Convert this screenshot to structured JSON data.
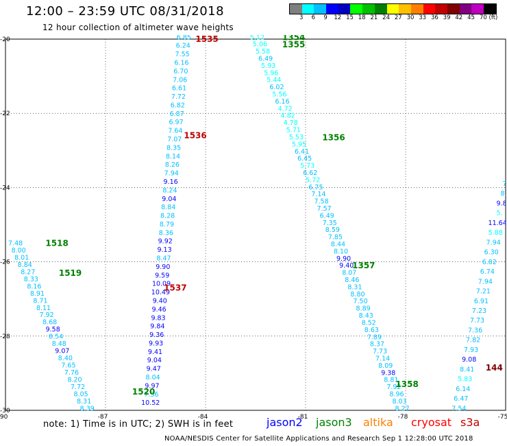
{
  "header": {
    "title": "12:00 – 23:59 UTC 08/31/2018",
    "subtitle": "12 hour collection of altimeter wave heights"
  },
  "scale": {
    "colors": [
      "#7f7f7f",
      "#00ffff",
      "#00c0ff",
      "#0000ff",
      "#0000c0",
      "#00ff00",
      "#00c000",
      "#008000",
      "#ffff00",
      "#ffc000",
      "#ff8000",
      "#ff0000",
      "#c00000",
      "#800000",
      "#800080",
      "#c000c0",
      "#000000"
    ],
    "labels": [
      "3",
      "6",
      "9",
      "12",
      "15",
      "18",
      "21",
      "24",
      "27",
      "30",
      "33",
      "36",
      "39",
      "42",
      "45",
      "70 (ft)"
    ]
  },
  "axes": {
    "x_ticks": [
      "-90",
      "-87",
      "-84",
      "-81",
      "-78",
      "-75"
    ],
    "y_ticks": [
      "-20",
      "-22",
      "-24",
      "-26",
      "-28",
      "-30"
    ],
    "x_range": [
      -90,
      -75
    ],
    "y_range": [
      -30,
      -20
    ]
  },
  "legend": {
    "items": [
      {
        "label": "jason2",
        "color": "#0000ff"
      },
      {
        "label": "jason3",
        "color": "#008000"
      },
      {
        "label": "altika",
        "color": "#ff8000"
      },
      {
        "label": "cryosat",
        "color": "#ff0000"
      },
      {
        "label": "s3a",
        "color": "#c00000"
      }
    ]
  },
  "passes": [
    {
      "label": "1518",
      "color": "#008000",
      "lon": -88.8,
      "lat": -25.5
    },
    {
      "label": "1519",
      "color": "#008000",
      "lon": -88.4,
      "lat": -26.3
    },
    {
      "label": "1520",
      "color": "#008000",
      "lon": -86.2,
      "lat": -29.5
    },
    {
      "label": "1535",
      "color": "#c00000",
      "lon": -84.3,
      "lat": -20.0
    },
    {
      "label": "1536",
      "color": "#c00000",
      "lon": -84.65,
      "lat": -22.6
    },
    {
      "label": "1537",
      "color": "#c00000",
      "lon": -85.25,
      "lat": -26.7
    },
    {
      "label": "1354",
      "color": "#008000",
      "lon": -81.7,
      "lat": -19.95
    },
    {
      "label": "1355",
      "color": "#008000",
      "lon": -81.7,
      "lat": -20.15
    },
    {
      "label": "1356",
      "color": "#008000",
      "lon": -80.5,
      "lat": -22.65
    },
    {
      "label": "1357",
      "color": "#008000",
      "lon": -79.6,
      "lat": -26.1
    },
    {
      "label": "1358",
      "color": "#008000",
      "lon": -78.3,
      "lat": -29.3
    },
    {
      "label": "144",
      "color": "#800000",
      "lon": -75.6,
      "lat": -28.85
    }
  ],
  "tracks": [
    {
      "name": "track-1518-1520",
      "start": [
        -89.7,
        -25.5
      ],
      "end": [
        -87.55,
        -29.95
      ],
      "values": [
        "7.48",
        "8.00",
        "8.01",
        "8.84",
        "8.27",
        "8.33",
        "8.16",
        "8.91",
        "8.71",
        "8.11",
        "7.92",
        "8.68",
        "9.58",
        "8.54",
        "8.48",
        "9.07",
        "8.40",
        "7.65",
        "7.76",
        "8.20",
        "7.72",
        "8.05",
        "8.31",
        "8.39"
      ]
    },
    {
      "name": "track-1535-1537",
      "start": [
        -84.65,
        -19.95
      ],
      "end": [
        -85.65,
        -29.8
      ],
      "values": [
        "6.85",
        "6.24",
        "7.55",
        "6.16",
        "6.70",
        "7.06",
        "6.61",
        "7.72",
        "6.82",
        "6.87",
        "6.97",
        "7.64",
        "7.07",
        "8.35",
        "8.14",
        "8.26",
        "7.94",
        "9.16",
        "8.24",
        "9.04",
        "8.84",
        "8.28",
        "8.79",
        "8.36",
        "9.92",
        "9.13",
        "8.47",
        "9.90",
        "9.59",
        "10.09",
        "10.49",
        "9.40",
        "9.46",
        "9.83",
        "9.84",
        "9.36",
        "9.93",
        "9.41",
        "9.04",
        "9.47",
        "8.04",
        "9.97",
        "7.36",
        "10.52"
      ]
    },
    {
      "name": "track-1354-1358",
      "start": [
        -82.45,
        -19.95
      ],
      "end": [
        -78.1,
        -29.95
      ],
      "values": [
        "5.12",
        "5.06",
        "5.58",
        "6.49",
        "5.93",
        "5.96",
        "5.44",
        "6.02",
        "5.56",
        "6.16",
        "4.72",
        "4.82",
        "4.78",
        "5.71",
        "5.53",
        "5.95",
        "6.41",
        "6.45",
        "5.73",
        "6.62",
        "5.72",
        "6.75",
        "7.14",
        "7.58",
        "7.57",
        "6.49",
        "7.35",
        "8.59",
        "7.85",
        "8.44",
        "8.10",
        "9.90",
        "9.40",
        "8.07",
        "8.46",
        "8.31",
        "8.80",
        "7.50",
        "8.89",
        "8.43",
        "8.52",
        "8.63",
        "7.89",
        "8.37",
        "7.73",
        "7.14",
        "8.09",
        "9.38",
        "8.81",
        "7.92",
        "8.96",
        "8.03",
        "8.27"
      ]
    },
    {
      "name": "track-144",
      "start": [
        -75.0,
        -23.9
      ],
      "end": [
        -76.4,
        -29.95
      ],
      "values": [
        "7.",
        "8.",
        "9.8",
        "5.",
        "11.64",
        "5.88",
        "7.94",
        "6.30",
        "6.82",
        "6.74",
        "7.94",
        "7.21",
        "6.91",
        "7.23",
        "7.73",
        "7.36",
        "7.82",
        "7.93",
        "9.08",
        "8.41",
        "5.83",
        "6.14",
        "6.47",
        "7.54"
      ]
    }
  ],
  "footer": {
    "note": "note: 1) Time is in UTC; 2) SWH is in feet",
    "credit": "NOAA/NESDIS Center for Satellite Applications and Research    Sep  1 12:28:00 UTC 2018"
  }
}
